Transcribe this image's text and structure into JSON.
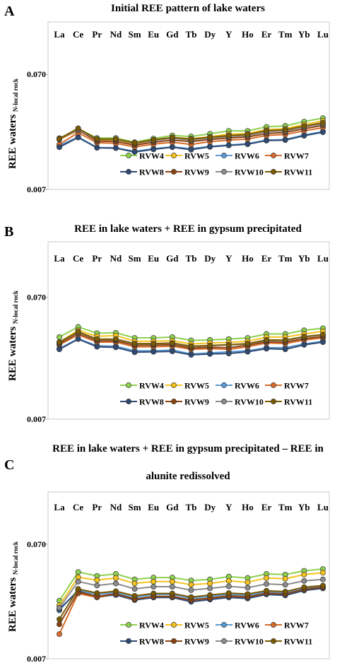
{
  "colors": {
    "RVW4": "#8ed14f",
    "RVW5": "#f6c31d",
    "RVW6": "#5b9bd5",
    "RVW7": "#d86b2b",
    "RVW8": "#2e4a73",
    "RVW9": "#8a4312",
    "RVW10": "#8c8c8c",
    "RVW11": "#7a5a00"
  },
  "chart_data": [
    {
      "type": "line",
      "panel_letter": "A",
      "title": "Initial REE pattern of lake waters",
      "title_line2": "",
      "ylabel": "REE waters",
      "ylabel_sub": "N-local rock",
      "yscale": "log",
      "ylim": [
        0.007,
        0.2
      ],
      "yticks": [
        "0.070",
        "0.007"
      ],
      "categories": [
        "La",
        "Ce",
        "Pr",
        "Nd",
        "Sm",
        "Eu",
        "Gd",
        "Tb",
        "Dy",
        "Y",
        "Ho",
        "Er",
        "Tm",
        "Yb",
        "Lu"
      ],
      "legend": "bottom-right",
      "series": [
        {
          "name": "RVW4",
          "values": [
            0.0195,
            0.0235,
            0.0196,
            0.0196,
            0.018,
            0.0194,
            0.0206,
            0.0202,
            0.0213,
            0.0226,
            0.0226,
            0.0245,
            0.025,
            0.0272,
            0.0292
          ]
        },
        {
          "name": "RVW5",
          "values": [
            0.019,
            0.0228,
            0.0188,
            0.0188,
            0.0174,
            0.0187,
            0.0198,
            0.0193,
            0.0201,
            0.0212,
            0.0214,
            0.0232,
            0.0236,
            0.0257,
            0.0276
          ]
        },
        {
          "name": "RVW6",
          "values": [
            0.0168,
            0.02,
            0.0162,
            0.0161,
            0.015,
            0.0158,
            0.0164,
            0.0158,
            0.0166,
            0.017,
            0.0175,
            0.0188,
            0.019,
            0.0208,
            0.0223
          ]
        },
        {
          "name": "RVW7",
          "values": [
            0.0172,
            0.0218,
            0.0178,
            0.0176,
            0.0164,
            0.0173,
            0.018,
            0.0172,
            0.0182,
            0.0188,
            0.0192,
            0.0206,
            0.021,
            0.0226,
            0.0241
          ]
        },
        {
          "name": "RVW8",
          "values": [
            0.0163,
            0.0198,
            0.0161,
            0.016,
            0.0148,
            0.0156,
            0.0163,
            0.0155,
            0.0164,
            0.0169,
            0.0173,
            0.0186,
            0.0188,
            0.0205,
            0.022
          ]
        },
        {
          "name": "RVW9",
          "values": [
            0.0192,
            0.023,
            0.0184,
            0.0183,
            0.017,
            0.018,
            0.0188,
            0.0182,
            0.019,
            0.0196,
            0.02,
            0.0214,
            0.0219,
            0.0236,
            0.0252
          ]
        },
        {
          "name": "RVW10",
          "values": [
            0.0194,
            0.0232,
            0.019,
            0.019,
            0.0176,
            0.0186,
            0.0195,
            0.0188,
            0.0196,
            0.0202,
            0.0206,
            0.0222,
            0.0226,
            0.0244,
            0.026
          ]
        },
        {
          "name": "RVW11",
          "values": [
            0.0193,
            0.0238,
            0.0192,
            0.0192,
            0.0178,
            0.0189,
            0.0198,
            0.0192,
            0.0199,
            0.0206,
            0.021,
            0.0227,
            0.0231,
            0.0249,
            0.0266
          ]
        }
      ]
    },
    {
      "type": "line",
      "panel_letter": "B",
      "title": "REE in lake waters + REE in gypsum precipitated",
      "title_line2": "",
      "ylabel": "REE waters",
      "ylabel_sub": "N-local rock",
      "yscale": "log",
      "ylim": [
        0.007,
        0.2
      ],
      "yticks": [
        "0.070",
        "0.007"
      ],
      "categories": [
        "La",
        "Ce",
        "Pr",
        "Nd",
        "Sm",
        "Eu",
        "Gd",
        "Tb",
        "Dy",
        "Y",
        "Ho",
        "Er",
        "Tm",
        "Yb",
        "Lu"
      ],
      "legend": "bottom-right",
      "series": [
        {
          "name": "RVW4",
          "values": [
            0.033,
            0.04,
            0.0355,
            0.0358,
            0.0325,
            0.0325,
            0.033,
            0.031,
            0.0313,
            0.0318,
            0.0325,
            0.035,
            0.035,
            0.0375,
            0.039
          ]
        },
        {
          "name": "RVW5",
          "values": [
            0.03,
            0.0375,
            0.0335,
            0.034,
            0.0305,
            0.0305,
            0.0308,
            0.029,
            0.0295,
            0.0298,
            0.0305,
            0.033,
            0.033,
            0.035,
            0.0368
          ]
        },
        {
          "name": "RVW6",
          "values": [
            0.0265,
            0.032,
            0.028,
            0.0278,
            0.0255,
            0.0255,
            0.0258,
            0.024,
            0.0245,
            0.025,
            0.0255,
            0.027,
            0.027,
            0.029,
            0.0305
          ]
        },
        {
          "name": "RVW7",
          "values": [
            0.0285,
            0.0345,
            0.03,
            0.03,
            0.0275,
            0.0275,
            0.0278,
            0.0262,
            0.0265,
            0.0262,
            0.0275,
            0.0295,
            0.0292,
            0.0312,
            0.0325
          ]
        },
        {
          "name": "RVW8",
          "values": [
            0.0262,
            0.0318,
            0.0275,
            0.0272,
            0.0248,
            0.025,
            0.0252,
            0.0236,
            0.024,
            0.0242,
            0.025,
            0.0265,
            0.0262,
            0.0285,
            0.03
          ]
        },
        {
          "name": "RVW9",
          "values": [
            0.029,
            0.0355,
            0.0308,
            0.0308,
            0.0283,
            0.0283,
            0.0286,
            0.0268,
            0.0272,
            0.027,
            0.0283,
            0.0302,
            0.03,
            0.032,
            0.0333
          ]
        },
        {
          "name": "RVW10",
          "values": [
            0.0298,
            0.036,
            0.0315,
            0.0315,
            0.029,
            0.029,
            0.0293,
            0.0275,
            0.028,
            0.0285,
            0.029,
            0.031,
            0.031,
            0.033,
            0.0343
          ]
        },
        {
          "name": "RVW11",
          "values": [
            0.03,
            0.0365,
            0.0318,
            0.0318,
            0.0292,
            0.0292,
            0.0295,
            0.0278,
            0.0282,
            0.0286,
            0.0292,
            0.0313,
            0.0312,
            0.0333,
            0.0346
          ]
        }
      ]
    },
    {
      "type": "line",
      "panel_letter": "C",
      "title": "REE in lake waters + REE in gypsum precipitated – REE in",
      "title_line2": "alunite redissolved",
      "ylabel": "REE waters",
      "ylabel_sub": "N-local rock",
      "yscale": "log",
      "ylim": [
        0.007,
        0.2
      ],
      "yticks": [
        "0.070",
        "0.007"
      ],
      "categories": [
        "La",
        "Ce",
        "Pr",
        "Nd",
        "Sm",
        "Eu",
        "Gd",
        "Tb",
        "Dy",
        "Y",
        "Ho",
        "Er",
        "Tm",
        "Yb",
        "Lu"
      ],
      "legend": "bottom-right",
      "series": [
        {
          "name": "RVW4",
          "values": [
            0.0225,
            0.04,
            0.037,
            0.0385,
            0.0345,
            0.0358,
            0.0358,
            0.0338,
            0.0345,
            0.0365,
            0.0355,
            0.0385,
            0.038,
            0.041,
            0.0425
          ]
        },
        {
          "name": "RVW5",
          "values": [
            0.0205,
            0.036,
            0.034,
            0.0355,
            0.0318,
            0.033,
            0.033,
            0.031,
            0.0318,
            0.0335,
            0.0325,
            0.0355,
            0.035,
            0.038,
            0.0395
          ]
        },
        {
          "name": "RVW6",
          "values": [
            0.0185,
            0.028,
            0.0255,
            0.0265,
            0.024,
            0.0255,
            0.0255,
            0.0235,
            0.0245,
            0.0255,
            0.025,
            0.027,
            0.0265,
            0.029,
            0.03
          ]
        },
        {
          "name": "RVW7",
          "values": [
            0.0115,
            0.026,
            0.024,
            0.0255,
            0.0228,
            0.024,
            0.024,
            0.0222,
            0.0232,
            0.0242,
            0.0238,
            0.0258,
            0.0252,
            0.0278,
            0.029
          ]
        },
        {
          "name": "RVW8",
          "values": [
            0.019,
            0.0272,
            0.0245,
            0.0252,
            0.0228,
            0.024,
            0.024,
            0.022,
            0.023,
            0.024,
            0.0235,
            0.0255,
            0.025,
            0.0276,
            0.0288
          ]
        },
        {
          "name": "RVW9",
          "values": [
            0.014,
            0.0268,
            0.0245,
            0.0258,
            0.0232,
            0.0245,
            0.0245,
            0.0228,
            0.0237,
            0.0248,
            0.0243,
            0.0262,
            0.0258,
            0.0283,
            0.0295
          ]
        },
        {
          "name": "RVW10",
          "values": [
            0.0195,
            0.033,
            0.0305,
            0.0318,
            0.0285,
            0.0298,
            0.0298,
            0.0278,
            0.0288,
            0.03,
            0.0292,
            0.0315,
            0.031,
            0.0335,
            0.0345
          ]
        },
        {
          "name": "RVW11",
          "values": [
            0.0155,
            0.0285,
            0.0262,
            0.0272,
            0.0248,
            0.026,
            0.026,
            0.0242,
            0.0252,
            0.0262,
            0.0257,
            0.0275,
            0.027,
            0.0295,
            0.0305
          ]
        }
      ]
    }
  ]
}
